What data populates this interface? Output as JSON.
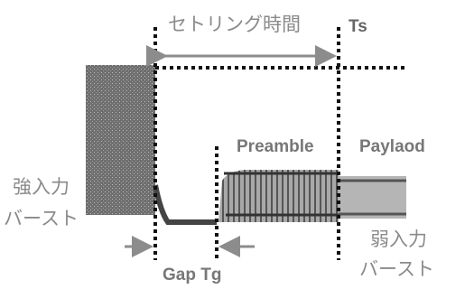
{
  "labels": {
    "settling_time": "セトリング時間",
    "ts": "Ts",
    "preamble": "Preamble",
    "payload": "Paylaod",
    "strong_input": [
      "強入力",
      "バースト"
    ],
    "weak_input": [
      "弱入力",
      "バースト"
    ],
    "gap": "Gap Tg"
  }
}
